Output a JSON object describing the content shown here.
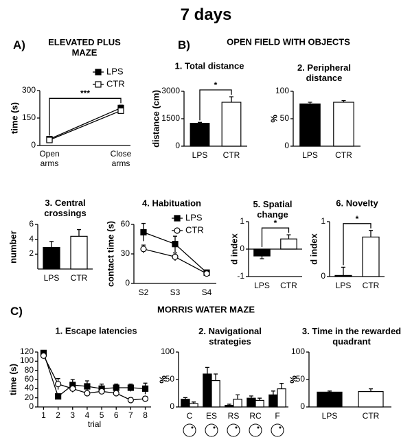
{
  "title": "7 days",
  "sections": [
    {
      "label": "A)"
    },
    {
      "label": "B)",
      "title": "OPEN FIELD WITH OBJECTS"
    },
    {
      "label": "C)",
      "title": "MORRIS WATER MAZE"
    }
  ],
  "chart_data": [
    {
      "type": "line",
      "title": "ELEVATED PLUS MAZE",
      "ylabel": "time (s)",
      "categories": [
        "Open arms",
        "Close arms"
      ],
      "series": [
        {
          "name": "LPS",
          "color": "#000000",
          "marker": "square",
          "values": [
            35,
            205
          ],
          "errors": [
            8,
            15
          ]
        },
        {
          "name": "CTR",
          "color": "#ffffff",
          "marker": "square",
          "values": [
            30,
            190
          ],
          "errors": [
            5,
            10
          ]
        }
      ],
      "ylim": [
        0,
        300
      ],
      "yticks": [
        0,
        150,
        300
      ],
      "legend": "upper right",
      "annotation": "***"
    },
    {
      "type": "bar",
      "title": "1. Total distance",
      "ylabel": "distance (cm)",
      "categories": [
        "LPS",
        "CTR"
      ],
      "values": [
        1250,
        2400
      ],
      "errors": [
        50,
        300
      ],
      "colors": [
        "#000000",
        "#ffffff"
      ],
      "ylim": [
        0,
        3000
      ],
      "yticks": [
        0,
        1500,
        3000
      ],
      "annotation": "*"
    },
    {
      "type": "bar",
      "title": "2. Peripheral distance",
      "ylabel": "%",
      "categories": [
        "LPS",
        "CTR"
      ],
      "values": [
        77,
        80
      ],
      "errors": [
        3,
        3
      ],
      "colors": [
        "#000000",
        "#ffffff"
      ],
      "ylim": [
        0,
        100
      ],
      "yticks": [
        0,
        50,
        100
      ]
    },
    {
      "type": "bar",
      "title": "3. Central crossings",
      "ylabel": "number",
      "categories": [
        "LPS",
        "CTR"
      ],
      "values": [
        2.9,
        4.4
      ],
      "errors": [
        0.8,
        0.9
      ],
      "colors": [
        "#000000",
        "#ffffff"
      ],
      "ylim": [
        0,
        6
      ],
      "yticks": [
        2,
        4,
        6
      ]
    },
    {
      "type": "line",
      "title": "4. Habituation",
      "ylabel": "contact time (s)",
      "categories": [
        "S2",
        "S3",
        "S4"
      ],
      "series": [
        {
          "name": "LPS",
          "color": "#000000",
          "marker": "square",
          "values": [
            52,
            40,
            11
          ],
          "errors": [
            9,
            8,
            2
          ]
        },
        {
          "name": "CTR",
          "color": "#ffffff",
          "marker": "circle",
          "values": [
            35,
            27,
            10
          ],
          "errors": [
            4,
            4,
            2
          ]
        }
      ],
      "ylim": [
        0,
        60
      ],
      "yticks": [
        0,
        30,
        60
      ],
      "legend": "upper right"
    },
    {
      "type": "bar",
      "title": "5. Spatial change",
      "ylabel": "d index",
      "categories": [
        "LPS",
        "CTR"
      ],
      "values": [
        -0.25,
        0.37
      ],
      "errors": [
        0.1,
        0.15
      ],
      "colors": [
        "#000000",
        "#ffffff"
      ],
      "ylim": [
        -1,
        1
      ],
      "yticks": [
        -1,
        0,
        1
      ],
      "annotation": "*"
    },
    {
      "type": "bar",
      "title": "6. Novelty",
      "ylabel": "d index",
      "categories": [
        "LPS",
        "CTR"
      ],
      "values": [
        0.02,
        0.72
      ],
      "errors": [
        0.15,
        0.12
      ],
      "colors": [
        "#000000",
        "#ffffff"
      ],
      "ylim": [
        0,
        1
      ],
      "yticks": [
        0,
        1
      ],
      "annotation": "*"
    },
    {
      "type": "line",
      "title": "1. Escape latencies",
      "ylabel": "time (s)",
      "xlabel": "trial",
      "x": [
        1,
        2,
        3,
        4,
        5,
        6,
        7,
        8
      ],
      "series": [
        {
          "name": "LPS",
          "color": "#000000",
          "marker": "square",
          "values": [
            118,
            23,
            48,
            45,
            40,
            42,
            42,
            40
          ],
          "errors": [
            4,
            5,
            12,
            12,
            10,
            8,
            8,
            12
          ]
        },
        {
          "name": "CTR",
          "color": "#ffffff",
          "marker": "circle",
          "values": [
            112,
            50,
            40,
            30,
            34,
            30,
            15,
            18
          ],
          "errors": [
            5,
            12,
            8,
            5,
            6,
            6,
            5,
            5
          ]
        }
      ],
      "xlim": [
        0.6,
        8.4
      ],
      "xticks": [
        1,
        2,
        3,
        4,
        5,
        6,
        7,
        8
      ],
      "ylim": [
        0,
        120
      ],
      "yticks": [
        0,
        20,
        40,
        60,
        80,
        100,
        120
      ]
    },
    {
      "type": "bar",
      "title": "2. Navigational strategies",
      "ylabel": "%",
      "categories": [
        "C",
        "ES",
        "RS",
        "RC",
        "F"
      ],
      "series": [
        {
          "name": "LPS",
          "color": "#000000",
          "values": [
            14,
            60,
            3,
            16,
            22
          ],
          "errors": [
            3,
            12,
            2,
            4,
            7
          ]
        },
        {
          "name": "CTR",
          "color": "#ffffff",
          "values": [
            6,
            48,
            14,
            12,
            33
          ],
          "errors": [
            3,
            12,
            8,
            4,
            10
          ]
        }
      ],
      "ylim": [
        0,
        100
      ],
      "yticks": [
        0,
        50,
        100
      ]
    },
    {
      "type": "bar",
      "title": "3. Time in the rewarded quadrant",
      "ylabel": "%",
      "categories": [
        "LPS",
        "CTR"
      ],
      "values": [
        27,
        28
      ],
      "errors": [
        2,
        5
      ],
      "colors": [
        "#000000",
        "#ffffff"
      ],
      "ylim": [
        0,
        100
      ],
      "yticks": [
        0,
        50,
        100
      ]
    }
  ]
}
